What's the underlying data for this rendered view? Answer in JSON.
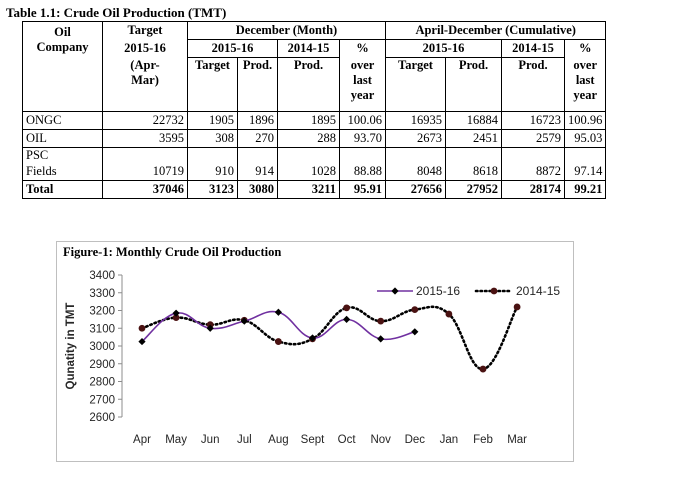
{
  "table": {
    "title": "Table 1.1: Crude Oil Production (TMT)",
    "headers": {
      "oil_company": [
        "Oil",
        "Company"
      ],
      "target": "Target",
      "target_year": "2015-16",
      "target_period": [
        "(Apr-",
        "Mar)"
      ],
      "december": "December (Month)",
      "dec_2015": "2015-16",
      "dec_2014": "2014-15",
      "dec_pct": [
        "%",
        "over",
        "last",
        "year"
      ],
      "dec_target": "Target",
      "dec_prod_2015": "Prod.",
      "dec_prod_2014": "Prod.",
      "cumulative": "April-December (Cumulative)",
      "cum_2015": "2015-16",
      "cum_2014": "2014-15",
      "cum_pct": [
        "%",
        "over",
        "last",
        "year"
      ],
      "cum_target": "Target",
      "cum_prod_2015": "Prod.",
      "cum_prod_2014": "Prod."
    },
    "rows": [
      {
        "company": "ONGC",
        "target": "22732",
        "dec_target": "1905",
        "dec_prod": "1896",
        "dec_prod_prev": "1895",
        "dec_pct": "100.06",
        "cum_target": "16935",
        "cum_prod": "16884",
        "cum_prod_prev": "16723",
        "cum_pct": "100.96"
      },
      {
        "company": "OIL",
        "target": "3595",
        "dec_target": "308",
        "dec_prod": "270",
        "dec_prod_prev": "288",
        "dec_pct": "93.70",
        "cum_target": "2673",
        "cum_prod": "2451",
        "cum_prod_prev": "2579",
        "cum_pct": "95.03"
      },
      {
        "company_line1": "PSC",
        "company_line2": "Fields",
        "target": "10719",
        "dec_target": "910",
        "dec_prod": "914",
        "dec_prod_prev": "1028",
        "dec_pct": "88.88",
        "cum_target": "8048",
        "cum_prod": "8618",
        "cum_prod_prev": "8872",
        "cum_pct": "97.14"
      },
      {
        "company": "Total",
        "target": "37046",
        "dec_target": "3123",
        "dec_prod": "3080",
        "dec_prod_prev": "3211",
        "dec_pct": "95.91",
        "cum_target": "27656",
        "cum_prod": "27952",
        "cum_prod_prev": "28174",
        "cum_pct": "99.21"
      }
    ]
  },
  "chart_data": {
    "type": "line",
    "title": "Figure-1: Monthly Crude Oil Production",
    "ylabel": "Qunatity in TMT",
    "xlabel": "",
    "ylim": [
      2600,
      3400
    ],
    "yticks": [
      2600,
      2700,
      2800,
      2900,
      3000,
      3100,
      3200,
      3300,
      3400
    ],
    "categories": [
      "Apr",
      "May",
      "Jun",
      "Jul",
      "Aug",
      "Sept",
      "Oct",
      "Nov",
      "Dec",
      "Jan",
      "Feb",
      "Mar"
    ],
    "grid": false,
    "legend_position": "top-right",
    "series": [
      {
        "name": "2015-16",
        "color": "#7030a0",
        "marker": "diamond",
        "line": "solid",
        "values": [
          3025,
          3185,
          3100,
          3140,
          3190,
          3045,
          3150,
          3040,
          3080,
          null,
          null,
          null
        ]
      },
      {
        "name": "2014-15",
        "color": "#000000",
        "marker_color": "#4a1212",
        "marker": "circle",
        "line": "dotted",
        "values": [
          3100,
          3160,
          3120,
          3145,
          3025,
          3040,
          3215,
          3140,
          3205,
          3180,
          2870,
          3220
        ]
      }
    ]
  }
}
